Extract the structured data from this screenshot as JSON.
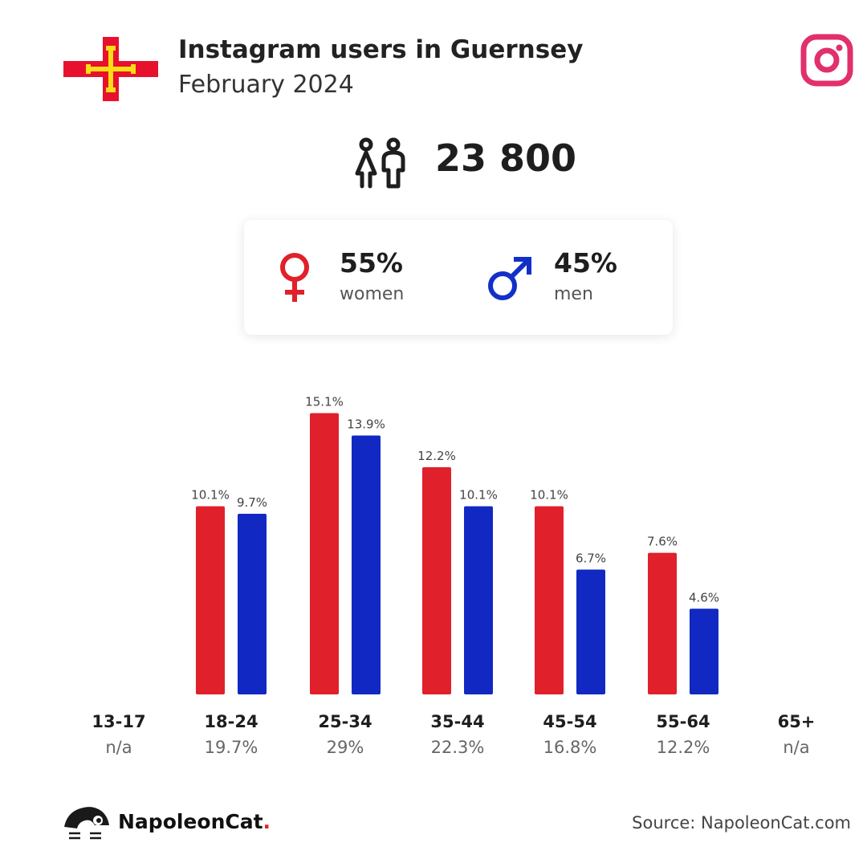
{
  "header": {
    "title": "Instagram users in Guernsey",
    "subtitle": "February 2024"
  },
  "flag": {
    "name": "guernsey-flag",
    "colors": {
      "field": "#ffffff",
      "cross": "#e8112d",
      "inner_cross": "#f9dd16"
    }
  },
  "platform_icon": "instagram-icon",
  "total_users": "23 800",
  "gender": {
    "women": {
      "percent": "55%",
      "label": "women",
      "color": "#e0202a",
      "icon": "female-icon"
    },
    "men": {
      "percent": "45%",
      "label": "men",
      "color": "#1230c8",
      "icon": "male-icon"
    }
  },
  "chart_data": {
    "type": "bar",
    "categories": [
      "13-17",
      "18-24",
      "25-34",
      "35-44",
      "45-54",
      "55-64",
      "65+"
    ],
    "category_totals": [
      "n/a",
      "19.7%",
      "29%",
      "22.3%",
      "16.8%",
      "12.2%",
      "n/a"
    ],
    "series": [
      {
        "color": "#e0202a",
        "values": [
          null,
          10.1,
          15.1,
          12.2,
          10.1,
          7.6,
          null
        ],
        "labels": [
          "",
          "10.1%",
          "15.1%",
          "12.2%",
          "10.1%",
          "7.6%",
          ""
        ]
      },
      {
        "color": "#1129c2",
        "values": [
          null,
          9.7,
          13.9,
          10.1,
          6.7,
          4.6,
          null
        ],
        "labels": [
          "",
          "9.7%",
          "13.9%",
          "10.1%",
          "6.7%",
          "4.6%",
          ""
        ]
      }
    ]
  },
  "footer": {
    "brand": "NapoleonCat",
    "brand_dot": ".",
    "source": "Source: NapoleonCat.com"
  }
}
